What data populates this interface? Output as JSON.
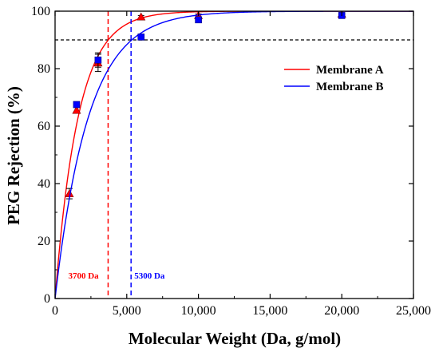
{
  "chart_data": {
    "type": "scatter",
    "xlabel": "Molecular Weight (Da, g/mol)",
    "ylabel": "PEG Rejection (%)",
    "xlim": [
      0,
      25000
    ],
    "ylim": [
      0,
      100
    ],
    "xticks": [
      0,
      5000,
      10000,
      15000,
      20000,
      25000
    ],
    "xtick_labels": [
      "0",
      "5,000",
      "10,000",
      "15,000",
      "20,000",
      "25,000"
    ],
    "yticks": [
      0,
      20,
      40,
      60,
      80,
      100
    ],
    "ytick_labels": [
      "0",
      "20",
      "40",
      "60",
      "80",
      "100"
    ],
    "grid": false,
    "legend_position": "right",
    "threshold_y": 90,
    "series": [
      {
        "name": "Membrane A",
        "color": "#ff0000",
        "marker": "triangle",
        "points": [
          {
            "x": 1000,
            "y": 36.5,
            "err": 1.8
          },
          {
            "x": 1500,
            "y": 65.5,
            "err": 1.0
          },
          {
            "x": 3000,
            "y": 82.0,
            "err": 3.0
          },
          {
            "x": 6000,
            "y": 98.0,
            "err": 0.5
          },
          {
            "x": 10000,
            "y": 98.5,
            "err": 0.5
          },
          {
            "x": 20000,
            "y": 99.0,
            "err": 0.5
          }
        ],
        "fit_k": 0.00062,
        "cutoff_x": 3700,
        "cutoff_label": "3700 Da"
      },
      {
        "name": "Membrane B",
        "color": "#0000ff",
        "marker": "square",
        "points": [
          {
            "x": 1500,
            "y": 67.5,
            "err": 1.0
          },
          {
            "x": 3000,
            "y": 83.0,
            "err": 2.5
          },
          {
            "x": 6000,
            "y": 91.0,
            "err": 0.6
          },
          {
            "x": 10000,
            "y": 97.0,
            "err": 0.6
          },
          {
            "x": 20000,
            "y": 98.5,
            "err": 0.5
          }
        ],
        "fit_k": 0.00043,
        "cutoff_x": 5300,
        "cutoff_label": "5300 Da"
      }
    ]
  }
}
